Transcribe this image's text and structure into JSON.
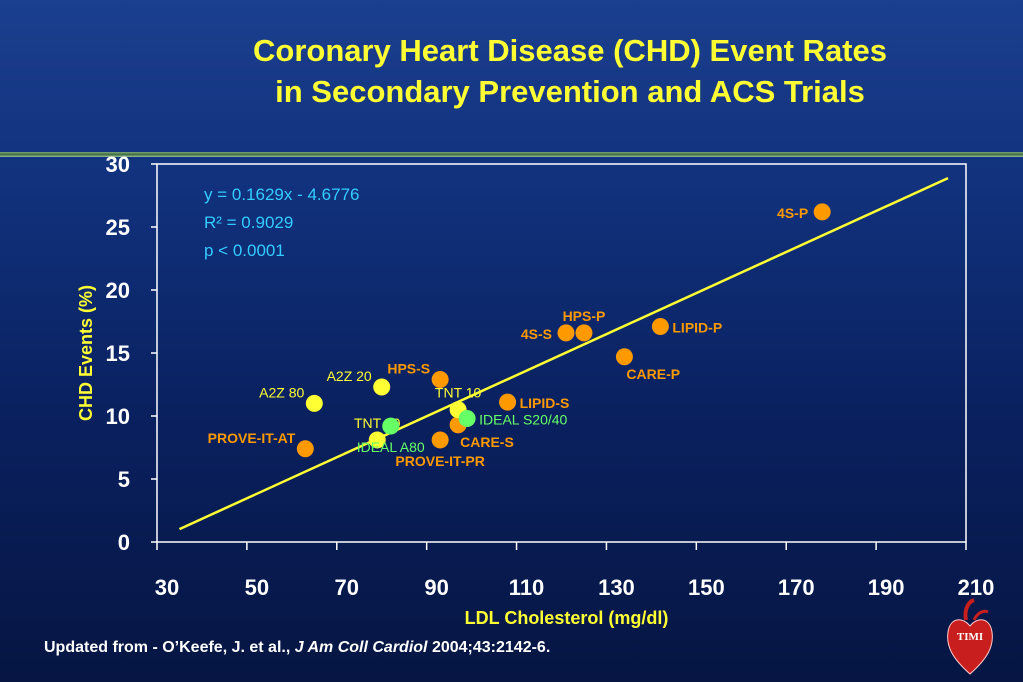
{
  "title": {
    "line1": "Coronary Heart Disease (CHD) Event Rates",
    "line2": "in Secondary Prevention and ACS Trials"
  },
  "footer": {
    "prefix": "Updated from -  O’Keefe, J. et al.,",
    "journal": "J Am Coll Cardiol",
    "citation": "2004;43:2142-6."
  },
  "logo": {
    "text": "TIMI",
    "icon": "heart-logo-icon"
  },
  "colors": {
    "background": "#0a2160",
    "title": "#ffff33",
    "orange": "#ff9900",
    "yellow": "#ffff33",
    "green": "#66ff66",
    "cyan": "#33ccff",
    "axis_label": "#ffff33",
    "tick": "#ffffff"
  },
  "chart_data": {
    "type": "scatter",
    "xlabel": "LDL Cholesterol (mg/dl)",
    "ylabel": "CHD Events (%)",
    "xlim": [
      30,
      210
    ],
    "ylim": [
      0,
      30
    ],
    "xticks": [
      30,
      50,
      70,
      90,
      110,
      130,
      150,
      170,
      190,
      210
    ],
    "yticks": [
      0,
      5,
      10,
      15,
      20,
      25,
      30
    ],
    "grid": false,
    "annotation": [
      "y = 0.1629x - 4.6776",
      "R² = 0.9029",
      "p < 0.0001"
    ],
    "trendline": {
      "slope": 0.1629,
      "intercept": -4.6776,
      "x_range": [
        35,
        206
      ]
    },
    "points": [
      {
        "label": "4S-P",
        "x": 178,
        "y": 26.2,
        "color": "orange",
        "bold": true,
        "label_pos": "left"
      },
      {
        "label": "HPS-P",
        "x": 125,
        "y": 16.6,
        "color": "orange",
        "bold": true,
        "label_pos": "above"
      },
      {
        "label": "4S-S",
        "x": 121,
        "y": 16.6,
        "color": "orange",
        "bold": true,
        "label_pos": "left"
      },
      {
        "label": "LIPID-P",
        "x": 142,
        "y": 17.1,
        "color": "orange",
        "bold": true,
        "label_pos": "right"
      },
      {
        "label": "CARE-P",
        "x": 134,
        "y": 14.7,
        "color": "orange",
        "bold": true,
        "label_pos": "below-right"
      },
      {
        "label": "HPS-S",
        "x": 93,
        "y": 12.9,
        "color": "orange",
        "bold": true,
        "label_pos": "left-above"
      },
      {
        "label": "LIPID-S",
        "x": 108,
        "y": 11.1,
        "color": "orange",
        "bold": true,
        "label_pos": "right"
      },
      {
        "label": "CARE-S",
        "x": 97,
        "y": 9.3,
        "color": "orange",
        "bold": true,
        "label_pos": "below-right"
      },
      {
        "label": "PROVE-IT-PR",
        "x": 93,
        "y": 8.1,
        "color": "orange",
        "bold": true,
        "label_pos": "below"
      },
      {
        "label": "PROVE-IT-AT",
        "x": 63,
        "y": 7.4,
        "color": "orange",
        "bold": true,
        "label_pos": "left-above"
      },
      {
        "label": "A2Z 20",
        "x": 80,
        "y": 12.3,
        "color": "yellow",
        "bold": false,
        "label_pos": "left-above"
      },
      {
        "label": "A2Z 80",
        "x": 65,
        "y": 11.0,
        "color": "yellow",
        "bold": false,
        "label_pos": "left-above"
      },
      {
        "label": "TNT 10",
        "x": 97,
        "y": 10.5,
        "color": "yellow",
        "bold": false,
        "label_pos": "above"
      },
      {
        "label": "TNT 80",
        "x": 79,
        "y": 8.1,
        "color": "yellow",
        "bold": false,
        "label_pos": "above"
      },
      {
        "label": "IDEAL S20/40",
        "x": 99,
        "y": 9.8,
        "color": "green",
        "bold": false,
        "label_pos": "right"
      },
      {
        "label": "IDEAL A80",
        "x": 82,
        "y": 9.2,
        "color": "green",
        "bold": false,
        "label_pos": "below"
      }
    ]
  }
}
